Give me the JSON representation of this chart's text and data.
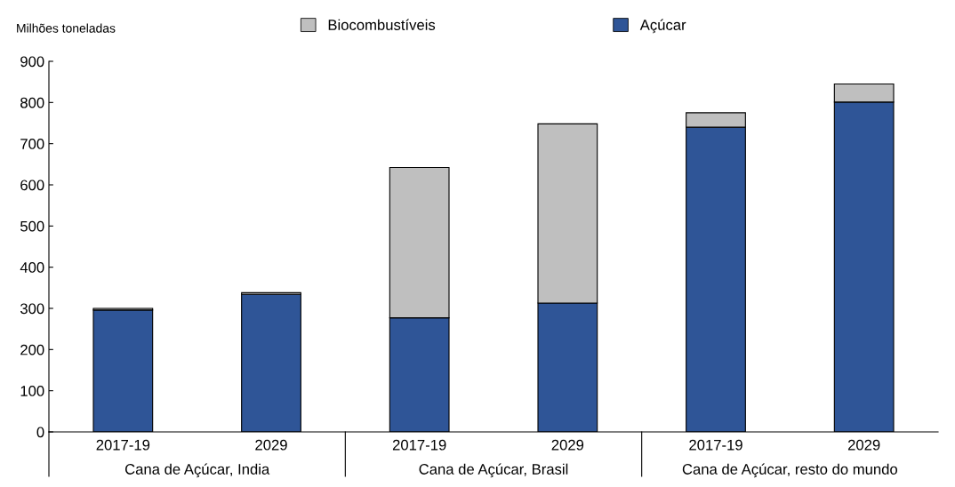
{
  "chart_data": {
    "type": "bar",
    "stacked": true,
    "ylabel": "Milhões toneladas",
    "categories": [
      "2017-19",
      "2029",
      "2017-19",
      "2029",
      "2017-19",
      "2029"
    ],
    "series": [
      {
        "name": "Açúcar",
        "color": "#2f5597",
        "values": [
          296,
          334,
          277,
          313,
          740,
          801
        ]
      },
      {
        "name": "Biocombustíveis",
        "color": "#bfbfbf",
        "values": [
          4,
          4,
          365,
          435,
          35,
          44
        ]
      }
    ],
    "annotations": [
      "Cana de Açúcar, India",
      "Cana de Açúcar, Brasil",
      "Cana de Açúcar, resto do mundo"
    ],
    "ylim": [
      0,
      900
    ],
    "yticks": [
      0,
      100,
      200,
      300,
      400,
      500,
      600,
      700,
      800,
      900
    ],
    "grid": false,
    "legend": "top"
  }
}
